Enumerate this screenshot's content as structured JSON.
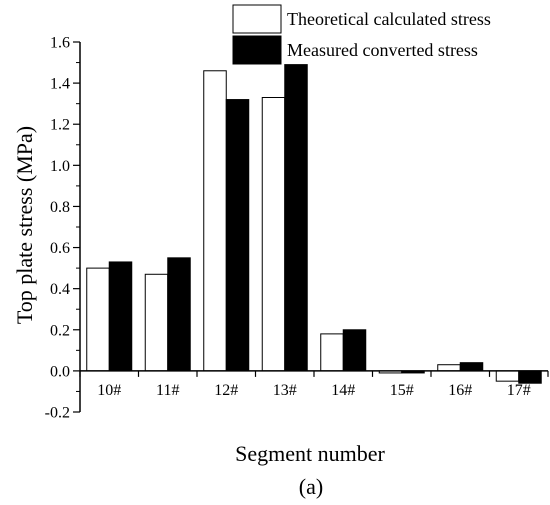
{
  "chart_data": {
    "type": "bar",
    "title": "",
    "xlabel": "Segment number",
    "ylabel": "Top plate stress (MPa)",
    "panel_label": "(a)",
    "categories": [
      "10#",
      "11#",
      "12#",
      "13#",
      "14#",
      "15#",
      "16#",
      "17#"
    ],
    "series": [
      {
        "name": "Theoretical calculated stress",
        "values": [
          0.5,
          0.47,
          1.46,
          1.33,
          0.18,
          -0.01,
          0.03,
          -0.05
        ],
        "fill": "#ffffff"
      },
      {
        "name": "Measured converted stress",
        "values": [
          0.53,
          0.55,
          1.32,
          1.49,
          0.2,
          -0.01,
          0.04,
          -0.06
        ],
        "fill": "#000000"
      }
    ],
    "ylim": [
      -0.2,
      1.6
    ],
    "yticks": [
      "-0.2",
      "0.0",
      "0.2",
      "0.4",
      "0.6",
      "0.8",
      "1.0",
      "1.2",
      "1.4",
      "1.6"
    ],
    "grid": false,
    "legend_position": "top-right"
  }
}
